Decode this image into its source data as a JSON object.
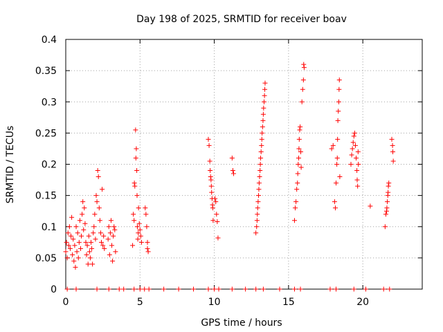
{
  "chart_data": {
    "type": "scatter",
    "title": "Day 198 of 2025, SRMTID for receiver boav",
    "xlabel": "GPS time / hours",
    "ylabel": "SRMTID / TECUs",
    "xlim": [
      0,
      24
    ],
    "ylim": [
      0,
      0.4
    ],
    "grid": true,
    "marker": "+",
    "color": "#ff0000",
    "x_ticks": [
      {
        "value": 0,
        "label": "0"
      },
      {
        "value": 5,
        "label": "5"
      },
      {
        "value": 10,
        "label": "10"
      },
      {
        "value": 15,
        "label": "15"
      },
      {
        "value": 20,
        "label": "20"
      }
    ],
    "y_ticks": [
      {
        "value": 0,
        "label": "0"
      },
      {
        "value": 0.05,
        "label": "0.05"
      },
      {
        "value": 0.1,
        "label": "0.1"
      },
      {
        "value": 0.15,
        "label": "0.15"
      },
      {
        "value": 0.2,
        "label": "0.2"
      },
      {
        "value": 0.25,
        "label": "0.25"
      },
      {
        "value": 0.3,
        "label": "0.3"
      },
      {
        "value": 0.35,
        "label": "0.35"
      },
      {
        "value": 0.4,
        "label": "0.4"
      }
    ],
    "series": [
      {
        "name": "SRMTID",
        "points": [
          [
            0.0,
            0.06
          ],
          [
            0.05,
            0.075
          ],
          [
            0.1,
            0.05
          ],
          [
            0.15,
            0.09
          ],
          [
            0.2,
            0.07
          ],
          [
            0.25,
            0.1
          ],
          [
            0.3,
            0.065
          ],
          [
            0.35,
            0.085
          ],
          [
            0.4,
            0.115
          ],
          [
            0.45,
            0.055
          ],
          [
            0.5,
            0.08
          ],
          [
            0.55,
            0.045
          ],
          [
            0.6,
            0.07
          ],
          [
            0.65,
            0.035
          ],
          [
            0.7,
            0.1
          ],
          [
            0.75,
            0.06
          ],
          [
            0.8,
            0.09
          ],
          [
            0.85,
            0.05
          ],
          [
            0.9,
            0.075
          ],
          [
            0.95,
            0.11
          ],
          [
            1.0,
            0.065
          ],
          [
            1.05,
            0.085
          ],
          [
            1.1,
            0.12
          ],
          [
            1.15,
            0.14
          ],
          [
            1.2,
            0.095
          ],
          [
            1.25,
            0.13
          ],
          [
            1.3,
            0.105
          ],
          [
            1.35,
            0.075
          ],
          [
            1.4,
            0.055
          ],
          [
            1.45,
            0.07
          ],
          [
            1.5,
            0.04
          ],
          [
            1.55,
            0.085
          ],
          [
            1.6,
            0.06
          ],
          [
            1.65,
            0.05
          ],
          [
            1.7,
            0.075
          ],
          [
            1.75,
            0.065
          ],
          [
            1.8,
            0.04
          ],
          [
            1.85,
            0.09
          ],
          [
            1.9,
            0.1
          ],
          [
            1.95,
            0.12
          ],
          [
            2.0,
            0.08
          ],
          [
            2.05,
            0.15
          ],
          [
            2.1,
            0.14
          ],
          [
            2.15,
            0.19
          ],
          [
            2.2,
            0.18
          ],
          [
            2.25,
            0.13
          ],
          [
            2.3,
            0.11
          ],
          [
            2.35,
            0.09
          ],
          [
            2.4,
            0.075
          ],
          [
            2.45,
            0.16
          ],
          [
            2.5,
            0.07
          ],
          [
            2.55,
            0.085
          ],
          [
            2.6,
            0.065
          ],
          [
            2.85,
            0.08
          ],
          [
            2.9,
            0.1
          ],
          [
            2.95,
            0.055
          ],
          [
            3.0,
            0.09
          ],
          [
            3.05,
            0.11
          ],
          [
            3.1,
            0.07
          ],
          [
            3.15,
            0.045
          ],
          [
            3.2,
            0.085
          ],
          [
            3.25,
            0.1
          ],
          [
            3.3,
            0.095
          ],
          [
            3.35,
            0.06
          ],
          [
            4.5,
            0.07
          ],
          [
            4.55,
            0.12
          ],
          [
            4.6,
            0.11
          ],
          [
            4.62,
            0.17
          ],
          [
            4.65,
            0.165
          ],
          [
            4.7,
            0.255
          ],
          [
            4.72,
            0.21
          ],
          [
            4.75,
            0.225
          ],
          [
            4.78,
            0.19
          ],
          [
            4.8,
            0.15
          ],
          [
            4.82,
            0.1
          ],
          [
            4.85,
            0.08
          ],
          [
            4.88,
            0.09
          ],
          [
            4.9,
            0.13
          ],
          [
            4.95,
            0.105
          ],
          [
            5.0,
            0.095
          ],
          [
            5.05,
            0.085
          ],
          [
            5.1,
            0.075
          ],
          [
            5.35,
            0.13
          ],
          [
            5.4,
            0.12
          ],
          [
            5.45,
            0.1
          ],
          [
            5.5,
            0.065
          ],
          [
            5.55,
            0.06
          ],
          [
            5.5,
            0.075
          ],
          [
            9.6,
            0.24
          ],
          [
            9.65,
            0.23
          ],
          [
            9.7,
            0.205
          ],
          [
            9.72,
            0.19
          ],
          [
            9.75,
            0.18
          ],
          [
            9.78,
            0.175
          ],
          [
            9.8,
            0.165
          ],
          [
            9.82,
            0.155
          ],
          [
            9.85,
            0.145
          ],
          [
            9.88,
            0.135
          ],
          [
            9.9,
            0.13
          ],
          [
            9.92,
            0.11
          ],
          [
            10.05,
            0.145
          ],
          [
            10.1,
            0.14
          ],
          [
            10.15,
            0.12
          ],
          [
            10.2,
            0.108
          ],
          [
            10.25,
            0.082
          ],
          [
            11.2,
            0.21
          ],
          [
            11.25,
            0.19
          ],
          [
            11.3,
            0.185
          ],
          [
            12.8,
            0.09
          ],
          [
            12.85,
            0.1
          ],
          [
            12.88,
            0.11
          ],
          [
            12.9,
            0.12
          ],
          [
            12.92,
            0.13
          ],
          [
            12.95,
            0.14
          ],
          [
            12.98,
            0.15
          ],
          [
            13.0,
            0.16
          ],
          [
            13.02,
            0.17
          ],
          [
            13.05,
            0.18
          ],
          [
            13.08,
            0.19
          ],
          [
            13.1,
            0.2
          ],
          [
            13.12,
            0.21
          ],
          [
            13.15,
            0.22
          ],
          [
            13.18,
            0.23
          ],
          [
            13.2,
            0.24
          ],
          [
            13.22,
            0.25
          ],
          [
            13.25,
            0.26
          ],
          [
            13.28,
            0.27
          ],
          [
            13.3,
            0.28
          ],
          [
            13.32,
            0.29
          ],
          [
            13.35,
            0.3
          ],
          [
            13.38,
            0.31
          ],
          [
            13.4,
            0.32
          ],
          [
            13.42,
            0.33
          ],
          [
            15.4,
            0.11
          ],
          [
            15.45,
            0.13
          ],
          [
            15.5,
            0.14
          ],
          [
            15.55,
            0.16
          ],
          [
            15.6,
            0.17
          ],
          [
            15.62,
            0.185
          ],
          [
            15.65,
            0.2
          ],
          [
            15.68,
            0.21
          ],
          [
            15.7,
            0.225
          ],
          [
            15.72,
            0.24
          ],
          [
            15.75,
            0.255
          ],
          [
            15.78,
            0.26
          ],
          [
            15.82,
            0.22
          ],
          [
            15.85,
            0.195
          ],
          [
            15.9,
            0.3
          ],
          [
            15.95,
            0.32
          ],
          [
            16.0,
            0.335
          ],
          [
            16.02,
            0.36
          ],
          [
            16.05,
            0.355
          ],
          [
            17.9,
            0.225
          ],
          [
            18.0,
            0.23
          ],
          [
            18.1,
            0.14
          ],
          [
            18.15,
            0.13
          ],
          [
            18.2,
            0.17
          ],
          [
            18.25,
            0.2
          ],
          [
            18.28,
            0.21
          ],
          [
            18.3,
            0.24
          ],
          [
            18.32,
            0.27
          ],
          [
            18.35,
            0.285
          ],
          [
            18.38,
            0.3
          ],
          [
            18.4,
            0.32
          ],
          [
            18.42,
            0.335
          ],
          [
            18.45,
            0.18
          ],
          [
            19.2,
            0.2
          ],
          [
            19.25,
            0.215
          ],
          [
            19.3,
            0.225
          ],
          [
            19.35,
            0.235
          ],
          [
            19.4,
            0.245
          ],
          [
            19.45,
            0.25
          ],
          [
            19.5,
            0.23
          ],
          [
            19.55,
            0.21
          ],
          [
            19.6,
            0.19
          ],
          [
            19.62,
            0.175
          ],
          [
            19.65,
            0.165
          ],
          [
            19.68,
            0.22
          ],
          [
            19.7,
            0.2
          ],
          [
            20.5,
            0.133
          ],
          [
            21.5,
            0.1
          ],
          [
            21.55,
            0.12
          ],
          [
            21.6,
            0.125
          ],
          [
            21.62,
            0.13
          ],
          [
            21.65,
            0.14
          ],
          [
            21.68,
            0.15
          ],
          [
            21.7,
            0.155
          ],
          [
            21.72,
            0.165
          ],
          [
            21.75,
            0.17
          ],
          [
            21.95,
            0.24
          ],
          [
            22.0,
            0.23
          ],
          [
            22.02,
            0.22
          ],
          [
            22.05,
            0.205
          ],
          [
            0.1,
            0.0
          ],
          [
            0.7,
            0.0
          ],
          [
            2.1,
            0.0
          ],
          [
            2.9,
            0.0
          ],
          [
            3.6,
            0.0
          ],
          [
            3.9,
            0.0
          ],
          [
            4.6,
            0.0
          ],
          [
            5.0,
            0.0
          ],
          [
            5.3,
            0.0
          ],
          [
            5.6,
            0.0
          ],
          [
            6.6,
            0.0
          ],
          [
            7.6,
            0.0
          ],
          [
            8.6,
            0.0
          ],
          [
            9.6,
            0.0
          ],
          [
            10.0,
            0.0
          ],
          [
            10.3,
            0.0
          ],
          [
            11.2,
            0.0
          ],
          [
            12.1,
            0.0
          ],
          [
            12.8,
            0.0
          ],
          [
            13.3,
            0.0
          ],
          [
            14.4,
            0.0
          ],
          [
            15.4,
            0.0
          ],
          [
            15.8,
            0.0
          ],
          [
            17.8,
            0.0
          ],
          [
            18.2,
            0.0
          ],
          [
            19.4,
            0.0
          ],
          [
            20.2,
            0.0
          ],
          [
            21.4,
            0.0
          ],
          [
            21.8,
            0.0
          ]
        ]
      }
    ]
  }
}
